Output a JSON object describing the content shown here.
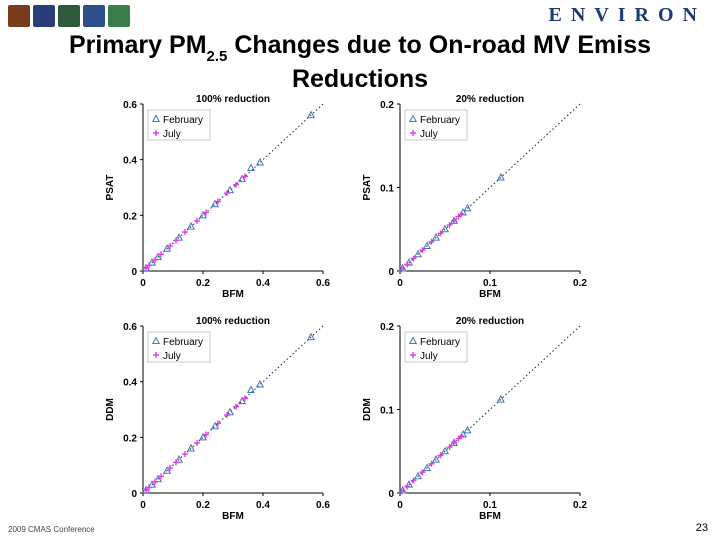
{
  "header": {
    "brand": "ENVIRON",
    "title_part1": "Primary PM",
    "title_sub": "2.5",
    "title_part2": " Changes due to On-road MV Emiss",
    "title_line2": "Reductions",
    "logos": [
      "logo-1",
      "logo-2",
      "logo-3",
      "logo-4",
      "logo-5"
    ],
    "logo_colors": [
      "#7a3b1d",
      "#2a3e7a",
      "#2c5a3a",
      "#2b4f86",
      "#3a7d4b"
    ]
  },
  "footer": {
    "conference": "2009 CMAS Conference",
    "page_number": "23"
  },
  "colors": {
    "february": "#4472c4",
    "july": "#e040e8",
    "oneToOne": "#222222",
    "axis": "#000000"
  },
  "chart_data": [
    {
      "type": "scatter",
      "title": "100% reduction",
      "xlabel": "BFM",
      "ylabel": "PSAT",
      "xlim": [
        0,
        0.6
      ],
      "ylim": [
        0,
        0.6
      ],
      "xticks": [
        "0",
        "0.2",
        "0.4",
        "0.6"
      ],
      "yticks": [
        "0",
        "0.2",
        "0.4",
        "0.6"
      ],
      "legend": "top-left",
      "one_to_one_line": true,
      "series": [
        {
          "name": "February",
          "marker": "triangle",
          "points": [
            [
              0.01,
              0.01
            ],
            [
              0.03,
              0.03
            ],
            [
              0.05,
              0.05
            ],
            [
              0.08,
              0.08
            ],
            [
              0.12,
              0.12
            ],
            [
              0.16,
              0.16
            ],
            [
              0.2,
              0.2
            ],
            [
              0.24,
              0.24
            ],
            [
              0.29,
              0.29
            ],
            [
              0.33,
              0.33
            ],
            [
              0.36,
              0.37
            ],
            [
              0.39,
              0.39
            ],
            [
              0.56,
              0.56
            ]
          ]
        },
        {
          "name": "July",
          "marker": "plus",
          "points": [
            [
              0.01,
              0.01
            ],
            [
              0.02,
              0.02
            ],
            [
              0.04,
              0.04
            ],
            [
              0.06,
              0.06
            ],
            [
              0.09,
              0.09
            ],
            [
              0.11,
              0.11
            ],
            [
              0.14,
              0.14
            ],
            [
              0.18,
              0.18
            ],
            [
              0.21,
              0.21
            ],
            [
              0.25,
              0.25
            ],
            [
              0.28,
              0.28
            ],
            [
              0.31,
              0.31
            ],
            [
              0.34,
              0.34
            ]
          ]
        }
      ]
    },
    {
      "type": "scatter",
      "title": "20% reduction",
      "xlabel": "BFM",
      "ylabel": "PSAT",
      "xlim": [
        0,
        0.2
      ],
      "ylim": [
        0,
        0.2
      ],
      "xticks": [
        "0",
        "0.1",
        "0.2"
      ],
      "yticks": [
        "0",
        "0.1",
        "0.2"
      ],
      "legend": "top-left",
      "one_to_one_line": true,
      "series": [
        {
          "name": "February",
          "marker": "triangle",
          "points": [
            [
              0.003,
              0.003
            ],
            [
              0.01,
              0.01
            ],
            [
              0.02,
              0.02
            ],
            [
              0.03,
              0.03
            ],
            [
              0.04,
              0.04
            ],
            [
              0.05,
              0.05
            ],
            [
              0.06,
              0.06
            ],
            [
              0.07,
              0.07
            ],
            [
              0.075,
              0.075
            ],
            [
              0.112,
              0.112
            ]
          ]
        },
        {
          "name": "July",
          "marker": "plus",
          "points": [
            [
              0.002,
              0.002
            ],
            [
              0.008,
              0.008
            ],
            [
              0.015,
              0.015
            ],
            [
              0.025,
              0.025
            ],
            [
              0.035,
              0.035
            ],
            [
              0.045,
              0.045
            ],
            [
              0.055,
              0.055
            ],
            [
              0.06,
              0.06
            ],
            [
              0.065,
              0.065
            ],
            [
              0.068,
              0.068
            ]
          ]
        }
      ]
    },
    {
      "type": "scatter",
      "title": "100% reduction",
      "xlabel": "BFM",
      "ylabel": "DDM",
      "xlim": [
        0,
        0.6
      ],
      "ylim": [
        0,
        0.6
      ],
      "xticks": [
        "0",
        "0.2",
        "0.4",
        "0.6"
      ],
      "yticks": [
        "0",
        "0.2",
        "0.4",
        "0.6"
      ],
      "legend": "top-left",
      "one_to_one_line": true,
      "series": [
        {
          "name": "February",
          "marker": "triangle",
          "points": [
            [
              0.01,
              0.01
            ],
            [
              0.03,
              0.03
            ],
            [
              0.05,
              0.05
            ],
            [
              0.08,
              0.08
            ],
            [
              0.12,
              0.12
            ],
            [
              0.16,
              0.16
            ],
            [
              0.2,
              0.2
            ],
            [
              0.24,
              0.24
            ],
            [
              0.29,
              0.29
            ],
            [
              0.33,
              0.33
            ],
            [
              0.36,
              0.37
            ],
            [
              0.39,
              0.39
            ],
            [
              0.56,
              0.56
            ]
          ]
        },
        {
          "name": "July",
          "marker": "plus",
          "points": [
            [
              0.01,
              0.01
            ],
            [
              0.02,
              0.02
            ],
            [
              0.04,
              0.04
            ],
            [
              0.06,
              0.06
            ],
            [
              0.09,
              0.09
            ],
            [
              0.11,
              0.11
            ],
            [
              0.14,
              0.14
            ],
            [
              0.18,
              0.18
            ],
            [
              0.21,
              0.21
            ],
            [
              0.25,
              0.25
            ],
            [
              0.28,
              0.28
            ],
            [
              0.31,
              0.31
            ],
            [
              0.34,
              0.34
            ]
          ]
        }
      ]
    },
    {
      "type": "scatter",
      "title": "20% reduction",
      "xlabel": "BFM",
      "ylabel": "DDM",
      "xlim": [
        0,
        0.2
      ],
      "ylim": [
        0,
        0.2
      ],
      "xticks": [
        "0",
        "0.1",
        "0.2"
      ],
      "yticks": [
        "0",
        "0.1",
        "0.2"
      ],
      "legend": "top-left",
      "one_to_one_line": true,
      "series": [
        {
          "name": "February",
          "marker": "triangle",
          "points": [
            [
              0.003,
              0.003
            ],
            [
              0.01,
              0.01
            ],
            [
              0.02,
              0.02
            ],
            [
              0.03,
              0.03
            ],
            [
              0.04,
              0.04
            ],
            [
              0.05,
              0.05
            ],
            [
              0.06,
              0.06
            ],
            [
              0.07,
              0.07
            ],
            [
              0.075,
              0.075
            ],
            [
              0.112,
              0.112
            ]
          ]
        },
        {
          "name": "July",
          "marker": "plus",
          "points": [
            [
              0.002,
              0.002
            ],
            [
              0.008,
              0.008
            ],
            [
              0.015,
              0.015
            ],
            [
              0.025,
              0.025
            ],
            [
              0.035,
              0.035
            ],
            [
              0.045,
              0.045
            ],
            [
              0.055,
              0.055
            ],
            [
              0.06,
              0.06
            ],
            [
              0.065,
              0.065
            ],
            [
              0.068,
              0.068
            ]
          ]
        }
      ]
    }
  ]
}
